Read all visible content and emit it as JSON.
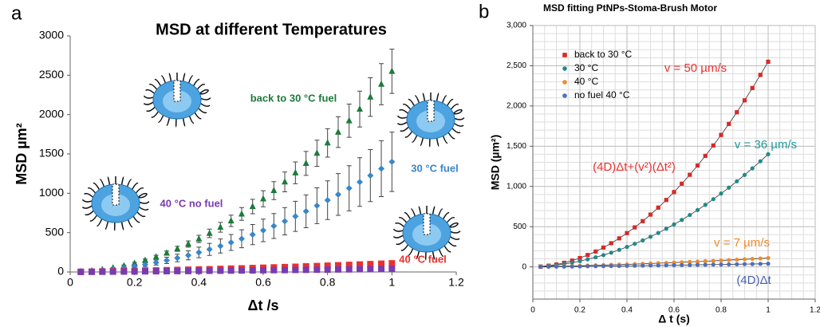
{
  "chart_data": [
    {
      "type": "scatter",
      "panel_label": "a",
      "title": "MSD at different Temperatures",
      "x_label": "Δt /s",
      "y_label": "MSD µm²",
      "xlim": [
        0,
        1.2
      ],
      "xticks": [
        0,
        0.2,
        0.4,
        0.6,
        0.8,
        1,
        1.2
      ],
      "ylim": [
        0,
        3000
      ],
      "yticks": [
        0,
        500,
        1000,
        1500,
        2000,
        2500,
        3000
      ],
      "grid": false,
      "x": [
        0.033,
        0.067,
        0.1,
        0.133,
        0.167,
        0.2,
        0.233,
        0.267,
        0.3,
        0.333,
        0.367,
        0.4,
        0.433,
        0.467,
        0.5,
        0.533,
        0.567,
        0.6,
        0.633,
        0.667,
        0.7,
        0.733,
        0.767,
        0.8,
        0.833,
        0.867,
        0.9,
        0.933,
        0.967,
        1.0
      ],
      "series": [
        {
          "name": "back to 30 °C fuel",
          "color": "#1e7a3c",
          "marker": "triangle",
          "values": [
            4,
            15,
            30,
            51,
            78,
            110,
            148,
            191,
            240,
            294,
            355,
            420,
            491,
            568,
            650,
            737,
            832,
            930,
            1034,
            1145,
            1260,
            1380,
            1509,
            1640,
            1777,
            1922,
            2070,
            2223,
            2386,
            2550
          ],
          "errors": [
            0,
            2,
            3,
            6,
            9,
            12,
            16,
            21,
            26,
            32,
            39,
            46,
            54,
            62,
            72,
            81,
            92,
            102,
            114,
            126,
            139,
            152,
            166,
            180,
            195,
            211,
            228,
            245,
            262,
            281
          ]
        },
        {
          "name": "30 °C fuel",
          "color": "#3a86c8",
          "marker": "diamond",
          "values": [
            5,
            12,
            23,
            36,
            53,
            72,
            94,
            120,
            147,
            177,
            212,
            248,
            287,
            330,
            375,
            422,
            475,
            528,
            584,
            645,
            707,
            771,
            842,
            912,
            985,
            1064,
            1143,
            1225,
            1313,
            1400
          ],
          "errors": [
            1,
            3,
            6,
            10,
            14,
            19,
            25,
            32,
            40,
            48,
            57,
            67,
            77,
            89,
            101,
            114,
            128,
            143,
            158,
            174,
            191,
            208,
            227,
            246,
            266,
            287,
            309,
            331,
            355,
            378
          ]
        },
        {
          "name": "40 °C fuel",
          "color": "#e8312f",
          "marker": "square",
          "values": [
            2,
            4,
            7,
            9,
            11,
            14,
            17,
            20,
            23,
            26,
            29,
            32,
            35,
            39,
            43,
            46,
            50,
            54,
            58,
            62,
            66,
            71,
            75,
            80,
            85,
            90,
            95,
            100,
            105,
            110
          ],
          "errors": [
            0,
            1,
            1,
            2,
            2,
            3,
            3,
            4,
            5,
            5,
            6,
            6,
            7,
            8,
            9,
            9,
            10,
            11,
            12,
            12,
            13,
            14,
            15,
            16,
            17,
            18,
            19,
            20,
            21,
            22
          ]
        },
        {
          "name": "40 °C no fuel",
          "color": "#7a3bb0",
          "marker": "square",
          "values": [
            1,
            2,
            3,
            4,
            5,
            6,
            8,
            9,
            10,
            11,
            12,
            14,
            15,
            16,
            18,
            19,
            20,
            22,
            23,
            24,
            26,
            27,
            29,
            30,
            32,
            33,
            35,
            36,
            38,
            40
          ],
          "errors": [
            0,
            0,
            1,
            1,
            1,
            1,
            2,
            2,
            2,
            2,
            2,
            3,
            3,
            3,
            4,
            4,
            4,
            4,
            5,
            5,
            5,
            5,
            6,
            6,
            6,
            7,
            7,
            7,
            8,
            8
          ]
        }
      ]
    },
    {
      "type": "scatter",
      "panel_label": "b",
      "title": "MSD fitting PtNPs-Stoma-Brush Motor",
      "x_label": "Δ t (s)",
      "y_label": "MSD (µm²)",
      "xlim": [
        0,
        1.2
      ],
      "xticks": [
        0,
        0.2,
        0.4,
        0.6,
        0.8,
        1,
        1.2
      ],
      "ylim": [
        -400,
        3000
      ],
      "yticks": [
        0,
        500,
        {
          "value": 1000,
          "label": "1,000"
        },
        {
          "value": 1500,
          "label": "1,500"
        },
        {
          "value": 2000,
          "label": "2,000"
        },
        {
          "value": 2500,
          "label": "2,500"
        },
        {
          "value": 3000,
          "label": "3,000"
        }
      ],
      "grid": true,
      "minor_grid": true,
      "legend": "upper-left",
      "fit_line_color": "#333333",
      "x": [
        0.033,
        0.067,
        0.1,
        0.133,
        0.167,
        0.2,
        0.233,
        0.267,
        0.3,
        0.333,
        0.367,
        0.4,
        0.433,
        0.467,
        0.5,
        0.533,
        0.567,
        0.6,
        0.633,
        0.667,
        0.7,
        0.733,
        0.767,
        0.8,
        0.833,
        0.867,
        0.9,
        0.933,
        0.967,
        1.0
      ],
      "series": [
        {
          "name": "back to 30 °C",
          "color": "#d42a2a",
          "marker": "square",
          "values": [
            4,
            15,
            30,
            51,
            78,
            110,
            148,
            191,
            240,
            294,
            355,
            420,
            491,
            568,
            650,
            737,
            832,
            930,
            1034,
            1145,
            1260,
            1380,
            1509,
            1640,
            1777,
            1922,
            2070,
            2223,
            2386,
            2550
          ]
        },
        {
          "name": "30 °C",
          "color": "#1f8a8a",
          "marker": "circle",
          "values": [
            5,
            12,
            23,
            36,
            53,
            72,
            94,
            120,
            147,
            177,
            212,
            248,
            287,
            330,
            375,
            422,
            475,
            528,
            584,
            645,
            707,
            771,
            842,
            912,
            985,
            1064,
            1143,
            1225,
            1313,
            1400
          ]
        },
        {
          "name": "40 °C",
          "color": "#f08a2a",
          "marker": "circle",
          "values": [
            2,
            4,
            7,
            9,
            11,
            14,
            17,
            20,
            23,
            26,
            29,
            32,
            35,
            39,
            43,
            46,
            50,
            54,
            58,
            62,
            66,
            71,
            75,
            80,
            85,
            90,
            95,
            100,
            105,
            110
          ]
        },
        {
          "name": "no fuel 40 °C",
          "color": "#4a6fc0",
          "marker": "circle",
          "values": [
            1,
            2,
            3,
            4,
            5,
            6,
            8,
            9,
            10,
            11,
            12,
            14,
            15,
            16,
            18,
            19,
            20,
            22,
            23,
            24,
            26,
            27,
            29,
            30,
            32,
            33,
            35,
            36,
            38,
            40
          ]
        }
      ],
      "annotations": [
        {
          "text": "v = 50 µm/s",
          "color": "#e8312f"
        },
        {
          "text": "v = 36 µm/s",
          "color": "#1f9a9a"
        },
        {
          "text": "(4D)Δt+(v²)(Δt²)",
          "color": "#e8312f"
        },
        {
          "text": "v = 7 µm/s",
          "color": "#f08a2a"
        },
        {
          "text": "(4D)Δt",
          "color": "#4a5fb0"
        }
      ]
    }
  ]
}
